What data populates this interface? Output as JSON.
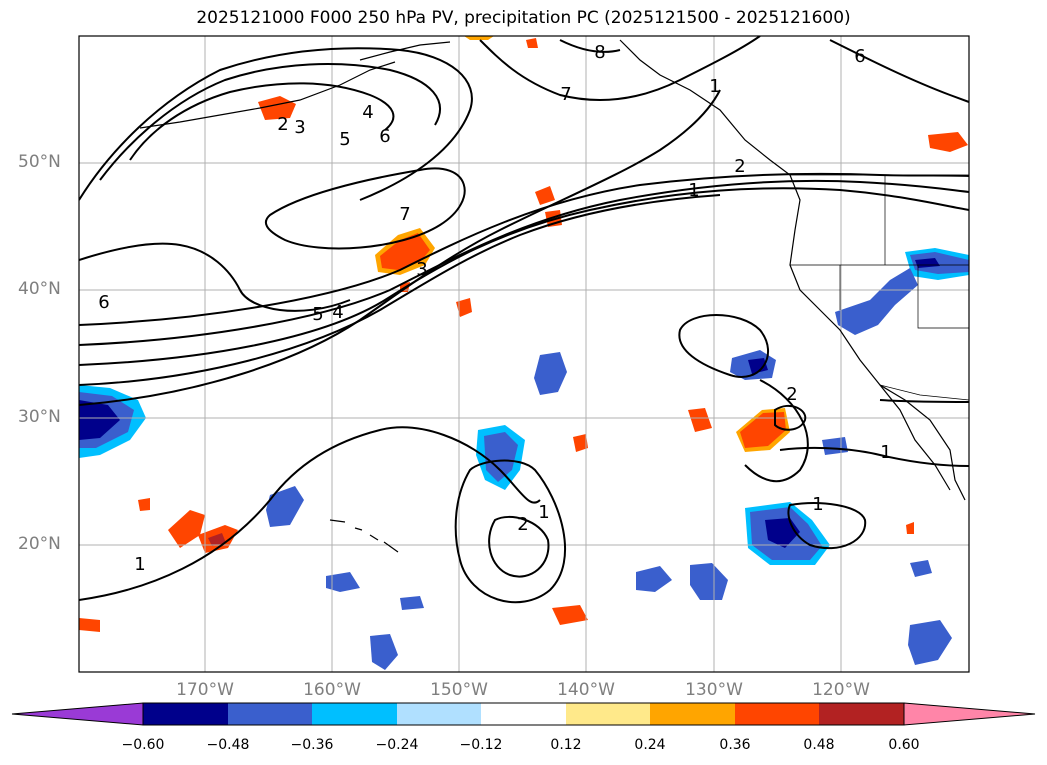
{
  "title": "2025121000 F000 250 hPa PV, precipitation PC (2025121500 - 2025121600)",
  "axes": {
    "lat_labels": [
      "50°N",
      "40°N",
      "30°N",
      "20°N"
    ],
    "lon_labels": [
      "170°W",
      "160°W",
      "150°W",
      "140°W",
      "130°W",
      "120°W"
    ]
  },
  "contour_labels": {
    "pv": [
      "8",
      "7",
      "6",
      "6",
      "5",
      "4",
      "3",
      "2",
      "2",
      "1",
      "7",
      "6",
      "5",
      "4",
      "3",
      "2",
      "1",
      "1",
      "1",
      "2",
      "1",
      "1"
    ]
  },
  "colorbar": {
    "ticks": [
      "−0.60",
      "−0.48",
      "−0.36",
      "−0.24",
      "−0.12",
      "0.12",
      "0.24",
      "0.36",
      "0.48",
      "0.60"
    ],
    "colors": [
      "#9a3ad6",
      "#00008b",
      "#3a5fcd",
      "#00bfff",
      "#b0e0ff",
      "#ffffff",
      "#ffe98a",
      "#ffa500",
      "#ff4500",
      "#b22222",
      "#ff85a8"
    ]
  }
}
